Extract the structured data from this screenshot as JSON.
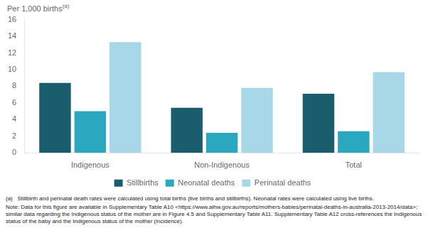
{
  "chart_data": {
    "type": "bar",
    "ylabel": "Per 1,000 births",
    "categories": [
      "Indigenous",
      "Non-Indigenous",
      "Total"
    ],
    "series": [
      {
        "name": "Stillbirths",
        "color": "#1a5e6e",
        "values": [
          8.4,
          5.4,
          7.1
        ]
      },
      {
        "name": "Neonatal deaths",
        "color": "#29a8c0",
        "values": [
          5.0,
          2.4,
          2.6
        ]
      },
      {
        "name": "Perinatal deaths",
        "color": "#a8d8e8",
        "values": [
          13.3,
          7.8,
          9.7
        ]
      }
    ],
    "ylim": [
      0,
      16
    ],
    "yticks": [
      0,
      2,
      4,
      6,
      8,
      10,
      12,
      14,
      16
    ],
    "grid": false,
    "legend": "bottom",
    "annotations": [
      "(a)",
      "(a)   Stillbirth and perinatal death rates were calculated using total births (live births and stillbirths). Neonatal rates were calculated using live births.",
      "Note: Data for this figure are available in Supplementary Table A10 <https://www.aihw.gov.au/reports/mothers-babies/perinatal-deaths-in-australia-2013-2014/data>; similar data regarding the Indigenous status of the mother are in Figure 4.5 and Supplementary Table A11. Supplementary Table A12 cross-references the Indigenous status of the baby and the Indigenous status of the mother (incidence)."
    ]
  }
}
